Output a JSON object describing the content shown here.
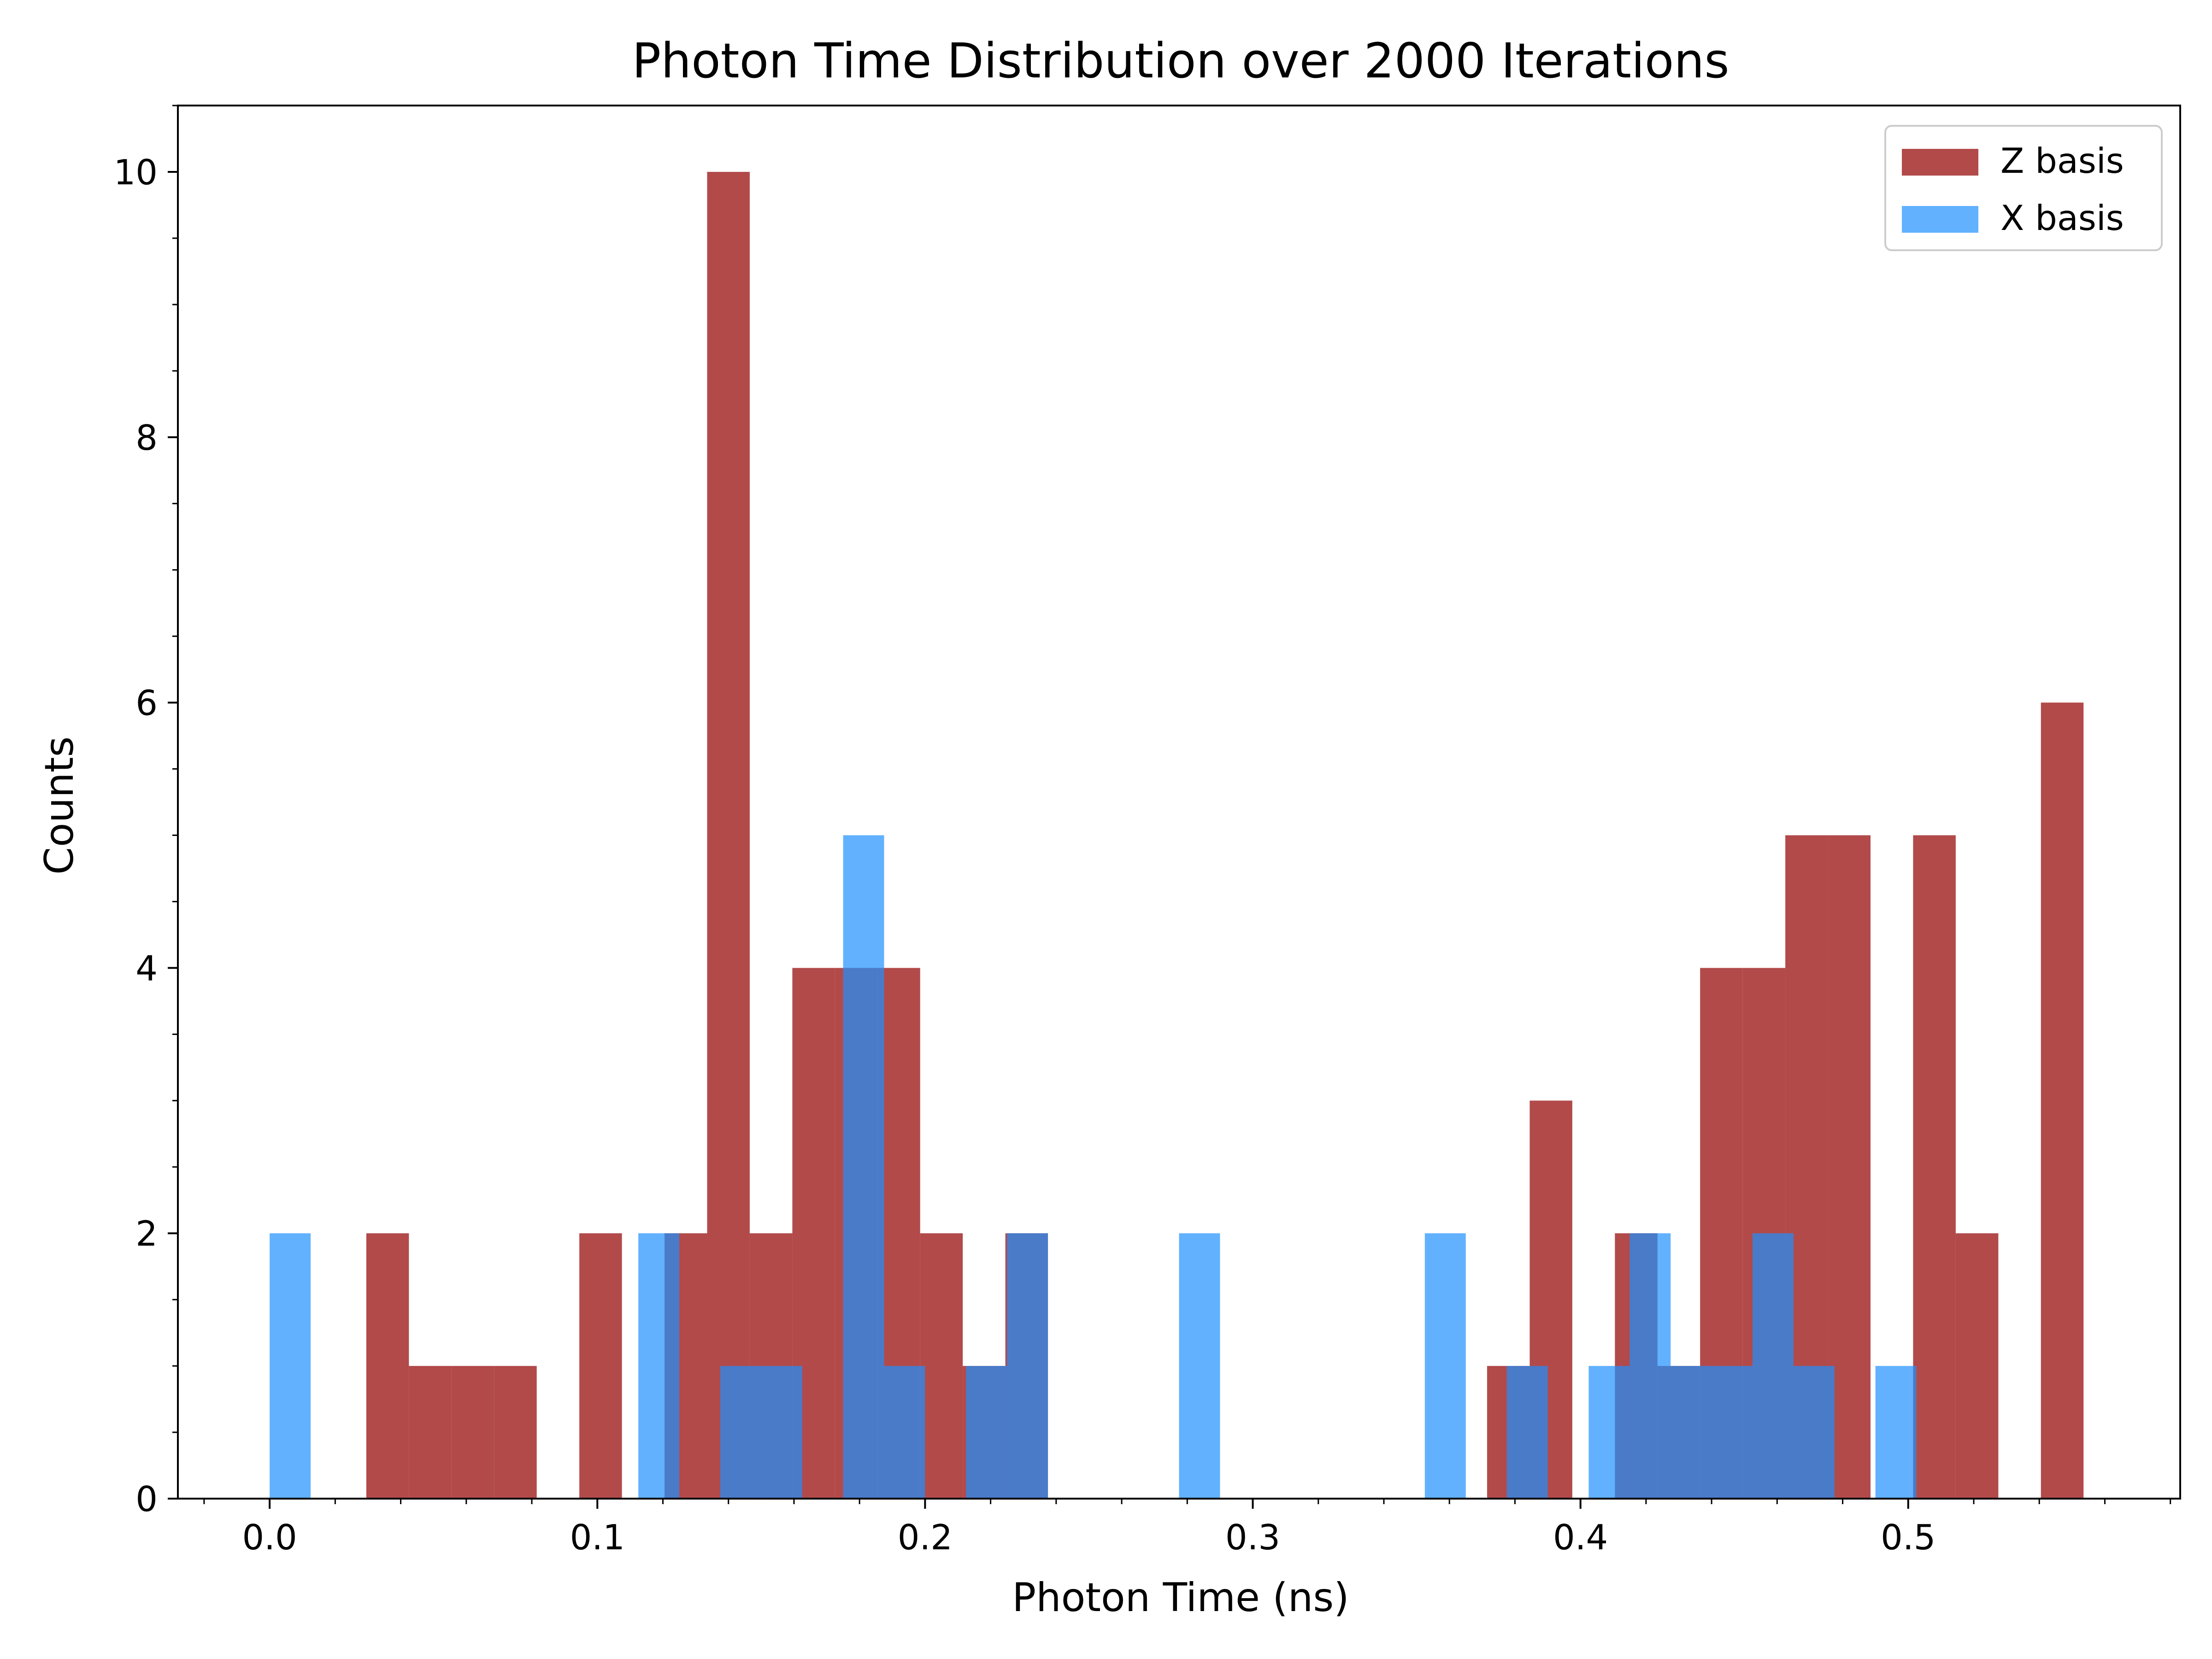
{
  "chart_data": {
    "type": "bar",
    "title": "Photon Time Distribution over 2000 Iterations",
    "xlabel": "Photon Time (ns)",
    "ylabel": "Counts",
    "xlim": [
      -0.028,
      0.583
    ],
    "ylim": [
      0,
      10.5
    ],
    "xticks": [
      {
        "value": 0.0,
        "label": "0.0"
      },
      {
        "value": 0.1,
        "label": "0.1"
      },
      {
        "value": 0.2,
        "label": "0.2"
      },
      {
        "value": 0.3,
        "label": "0.3"
      },
      {
        "value": 0.4,
        "label": "0.4"
      },
      {
        "value": 0.5,
        "label": "0.5"
      }
    ],
    "yticks": [
      {
        "value": 0,
        "label": "0"
      },
      {
        "value": 2,
        "label": "2"
      },
      {
        "value": 4,
        "label": "4"
      },
      {
        "value": 6,
        "label": "6"
      },
      {
        "value": 8,
        "label": "8"
      },
      {
        "value": 10,
        "label": "10"
      }
    ],
    "x_minor_step": 0.02,
    "y_minor_step": 0.5,
    "grid": false,
    "legend_position": "top-right",
    "series": [
      {
        "name": "Z basis",
        "color": "#a52a2a",
        "opacity": 0.85,
        "bins": [
          {
            "x0": 0.0295,
            "x1": 0.0425,
            "count": 2
          },
          {
            "x0": 0.0425,
            "x1": 0.0555,
            "count": 1
          },
          {
            "x0": 0.0555,
            "x1": 0.0685,
            "count": 1
          },
          {
            "x0": 0.0685,
            "x1": 0.0815,
            "count": 1
          },
          {
            "x0": 0.0945,
            "x1": 0.1075,
            "count": 2
          },
          {
            "x0": 0.1205,
            "x1": 0.1335,
            "count": 2
          },
          {
            "x0": 0.1335,
            "x1": 0.1465,
            "count": 10
          },
          {
            "x0": 0.1465,
            "x1": 0.1595,
            "count": 2
          },
          {
            "x0": 0.1595,
            "x1": 0.1725,
            "count": 4
          },
          {
            "x0": 0.1725,
            "x1": 0.1855,
            "count": 4
          },
          {
            "x0": 0.1855,
            "x1": 0.1985,
            "count": 4
          },
          {
            "x0": 0.1985,
            "x1": 0.2115,
            "count": 2
          },
          {
            "x0": 0.2115,
            "x1": 0.2245,
            "count": 1
          },
          {
            "x0": 0.2245,
            "x1": 0.2375,
            "count": 2
          },
          {
            "x0": 0.3715,
            "x1": 0.3845,
            "count": 1
          },
          {
            "x0": 0.3845,
            "x1": 0.3975,
            "count": 3
          },
          {
            "x0": 0.4105,
            "x1": 0.4235,
            "count": 2
          },
          {
            "x0": 0.4235,
            "x1": 0.4365,
            "count": 1
          },
          {
            "x0": 0.4365,
            "x1": 0.4495,
            "count": 4
          },
          {
            "x0": 0.4495,
            "x1": 0.4625,
            "count": 4
          },
          {
            "x0": 0.4625,
            "x1": 0.4755,
            "count": 5
          },
          {
            "x0": 0.4755,
            "x1": 0.4885,
            "count": 5
          },
          {
            "x0": 0.5015,
            "x1": 0.5145,
            "count": 5
          },
          {
            "x0": 0.5145,
            "x1": 0.5275,
            "count": 2
          },
          {
            "x0": 0.5405,
            "x1": 0.5535,
            "count": 6
          }
        ]
      },
      {
        "name": "X basis",
        "color": "#1e90ff",
        "opacity": 0.7,
        "bins": [
          {
            "x0": 0.0,
            "x1": 0.0125,
            "count": 2
          },
          {
            "x0": 0.1125,
            "x1": 0.125,
            "count": 2
          },
          {
            "x0": 0.1375,
            "x1": 0.15,
            "count": 1
          },
          {
            "x0": 0.15,
            "x1": 0.1625,
            "count": 1
          },
          {
            "x0": 0.175,
            "x1": 0.1875,
            "count": 5
          },
          {
            "x0": 0.1875,
            "x1": 0.2,
            "count": 1
          },
          {
            "x0": 0.2125,
            "x1": 0.225,
            "count": 1
          },
          {
            "x0": 0.225,
            "x1": 0.2375,
            "count": 2
          },
          {
            "x0": 0.2775,
            "x1": 0.29,
            "count": 2
          },
          {
            "x0": 0.3525,
            "x1": 0.365,
            "count": 2
          },
          {
            "x0": 0.3775,
            "x1": 0.39,
            "count": 1
          },
          {
            "x0": 0.4025,
            "x1": 0.415,
            "count": 1
          },
          {
            "x0": 0.415,
            "x1": 0.4275,
            "count": 2
          },
          {
            "x0": 0.4275,
            "x1": 0.44,
            "count": 1
          },
          {
            "x0": 0.44,
            "x1": 0.4525,
            "count": 1
          },
          {
            "x0": 0.4525,
            "x1": 0.465,
            "count": 2
          },
          {
            "x0": 0.465,
            "x1": 0.4775,
            "count": 1
          },
          {
            "x0": 0.49,
            "x1": 0.5025,
            "count": 1
          }
        ]
      }
    ]
  }
}
